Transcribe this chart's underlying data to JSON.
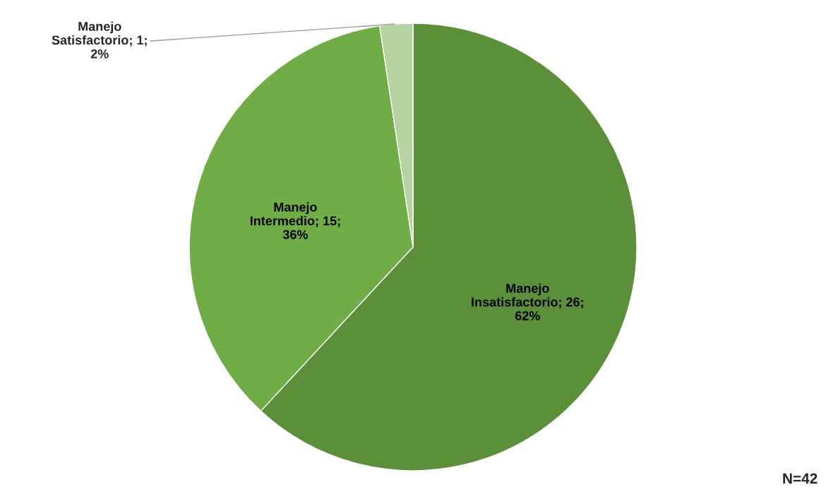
{
  "chart_data": {
    "type": "pie",
    "categories": [
      "Manejo Insatisfactorio",
      "Manejo Intermedio",
      "Manejo Satisfactorio"
    ],
    "values": [
      26,
      15,
      1
    ],
    "colors": [
      "#5b8f3a",
      "#70ad47",
      "#b5d3a0"
    ],
    "value_labels": [
      "26; 62%",
      "15; 36%",
      "1; 2%"
    ],
    "annotations": [
      "N=42"
    ],
    "legend": false
  }
}
